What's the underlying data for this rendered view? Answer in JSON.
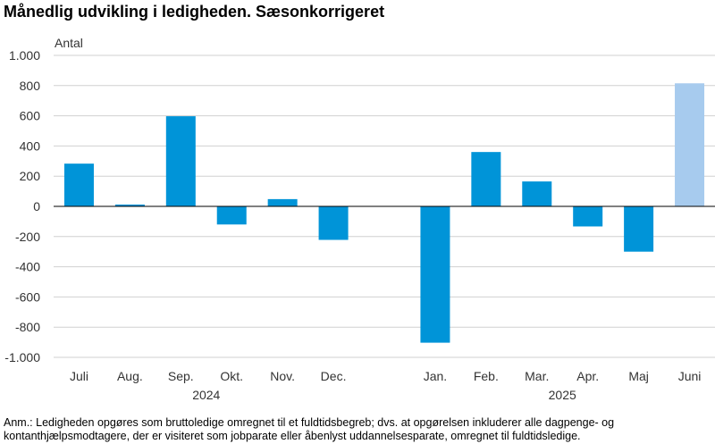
{
  "title": "Månedlig udvikling i ledigheden. Sæsonkorrigeret",
  "note": "Anm.: Ledigheden opgøres som bruttoledige omregnet til et fuldtidsbegreb; dvs. at opgørelsen inkluderer alle dagpenge- og kontanthjælpsmodtagere, der er visiteret som jobparate eller åbenlyst uddannelsesparate, omregnet til fuldtidsledige.",
  "chart_data": {
    "type": "bar",
    "ylabel": "Antal",
    "ylim": [
      -1000,
      1000
    ],
    "yticks": [
      1000,
      800,
      600,
      400,
      200,
      0,
      -200,
      -400,
      -600,
      -800,
      -1000
    ],
    "ytick_labels": [
      "1.000",
      "800",
      "600",
      "400",
      "200",
      "0",
      "-200",
      "-400",
      "-600",
      "-800",
      "-1.000"
    ],
    "categories": [
      "Juli",
      "Aug.",
      "Sep.",
      "Okt.",
      "Nov.",
      "Dec.",
      "",
      "Jan.",
      "Feb.",
      "Mar.",
      "Apr.",
      "Maj",
      "Juni"
    ],
    "values": [
      283,
      12,
      597,
      -120,
      48,
      -222,
      null,
      -903,
      360,
      165,
      -133,
      -300,
      815
    ],
    "highlight_color": "#a7cbee",
    "bar_color": "#0094d8",
    "highlight_index": 12,
    "groups": [
      {
        "label": "2024",
        "start": 0,
        "end": 5
      },
      {
        "label": "2025",
        "start": 7,
        "end": 12
      }
    ],
    "grid": true
  }
}
